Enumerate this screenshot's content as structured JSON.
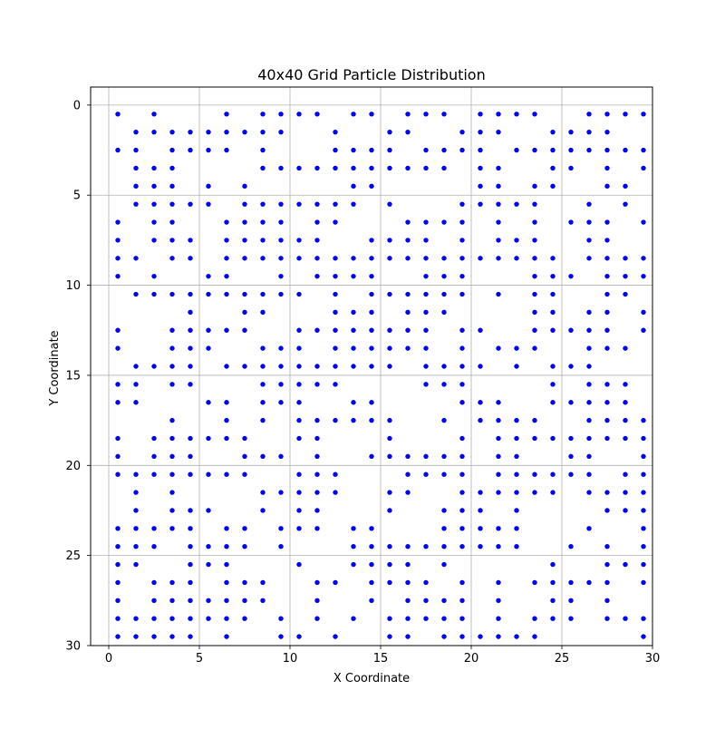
{
  "chart_data": {
    "type": "scatter",
    "title": "40x40 Grid Particle Distribution",
    "xlabel": "X Coordinate",
    "ylabel": "Y Coordinate",
    "xlim": [
      -1.0,
      30.0
    ],
    "ylim": [
      30.0,
      -1.0
    ],
    "y_inverted": true,
    "grid": true,
    "marker_color": "#0000ff",
    "xticks": [
      0,
      5,
      10,
      15,
      20,
      25,
      30
    ],
    "xtick_labels": [
      "0",
      "5",
      "10",
      "15",
      "20",
      "25",
      "30"
    ],
    "yticks": [
      0,
      5,
      10,
      15,
      20,
      25,
      30
    ],
    "ytick_labels": [
      "0",
      "5",
      "10",
      "15",
      "20",
      "25",
      "30"
    ],
    "rows": [
      {
        "y": 0.5,
        "x": [
          0.5,
          2.5,
          6.5,
          8.5,
          9.5,
          10.5,
          11.5,
          13.5,
          14.5,
          16.5,
          17.5,
          18.5,
          20.5,
          21.5,
          22.5,
          23.5,
          26.5,
          27.5,
          28.5,
          29.5
        ]
      },
      {
        "y": 1.5,
        "x": [
          1.5,
          2.5,
          3.5,
          4.5,
          5.5,
          6.5,
          7.5,
          8.5,
          9.5,
          12.5,
          15.5,
          16.5,
          19.5,
          20.5,
          21.5,
          24.5,
          25.5,
          26.5,
          27.5
        ]
      },
      {
        "y": 2.5,
        "x": [
          0.5,
          1.5,
          3.5,
          4.5,
          5.5,
          6.5,
          8.5,
          12.5,
          13.5,
          14.5,
          15.5,
          17.5,
          18.5,
          19.5,
          20.5,
          22.5,
          23.5,
          24.5,
          25.5,
          26.5,
          27.5,
          28.5,
          29.5
        ]
      },
      {
        "y": 3.5,
        "x": [
          1.5,
          2.5,
          3.5,
          8.5,
          9.5,
          10.5,
          11.5,
          12.5,
          13.5,
          14.5,
          15.5,
          16.5,
          17.5,
          18.5,
          20.5,
          21.5,
          24.5,
          25.5,
          27.5,
          29.5
        ]
      },
      {
        "y": 4.5,
        "x": [
          1.5,
          2.5,
          3.5,
          5.5,
          7.5,
          13.5,
          14.5,
          20.5,
          21.5,
          23.5,
          24.5,
          27.5,
          28.5
        ]
      },
      {
        "y": 5.5,
        "x": [
          1.5,
          2.5,
          3.5,
          4.5,
          5.5,
          7.5,
          8.5,
          9.5,
          10.5,
          11.5,
          12.5,
          13.5,
          15.5,
          19.5,
          20.5,
          21.5,
          22.5,
          23.5,
          26.5,
          28.5
        ]
      },
      {
        "y": 6.5,
        "x": [
          0.5,
          2.5,
          3.5,
          6.5,
          7.5,
          8.5,
          9.5,
          11.5,
          12.5,
          16.5,
          17.5,
          18.5,
          19.5,
          21.5,
          23.5,
          25.5,
          26.5,
          27.5,
          29.5
        ]
      },
      {
        "y": 7.5,
        "x": [
          0.5,
          2.5,
          3.5,
          4.5,
          6.5,
          7.5,
          8.5,
          9.5,
          10.5,
          11.5,
          14.5,
          15.5,
          16.5,
          17.5,
          19.5,
          21.5,
          22.5,
          23.5,
          26.5,
          27.5
        ]
      },
      {
        "y": 8.5,
        "x": [
          0.5,
          1.5,
          3.5,
          4.5,
          6.5,
          7.5,
          8.5,
          9.5,
          10.5,
          11.5,
          12.5,
          13.5,
          14.5,
          15.5,
          16.5,
          17.5,
          18.5,
          19.5,
          20.5,
          21.5,
          22.5,
          23.5,
          24.5,
          26.5,
          27.5,
          28.5,
          29.5
        ]
      },
      {
        "y": 9.5,
        "x": [
          0.5,
          2.5,
          5.5,
          6.5,
          9.5,
          11.5,
          12.5,
          13.5,
          14.5,
          17.5,
          18.5,
          19.5,
          23.5,
          24.5,
          25.5,
          27.5,
          28.5,
          29.5
        ]
      },
      {
        "y": 10.5,
        "x": [
          1.5,
          2.5,
          3.5,
          4.5,
          5.5,
          6.5,
          7.5,
          8.5,
          9.5,
          10.5,
          12.5,
          14.5,
          15.5,
          16.5,
          17.5,
          18.5,
          19.5,
          21.5,
          23.5,
          24.5,
          27.5,
          28.5
        ]
      },
      {
        "y": 11.5,
        "x": [
          4.5,
          7.5,
          8.5,
          12.5,
          13.5,
          14.5,
          16.5,
          17.5,
          18.5,
          23.5,
          24.5,
          26.5,
          27.5,
          29.5
        ]
      },
      {
        "y": 12.5,
        "x": [
          0.5,
          3.5,
          4.5,
          5.5,
          6.5,
          7.5,
          10.5,
          11.5,
          12.5,
          13.5,
          14.5,
          15.5,
          16.5,
          17.5,
          19.5,
          20.5,
          23.5,
          24.5,
          25.5,
          26.5,
          27.5,
          29.5
        ]
      },
      {
        "y": 13.5,
        "x": [
          0.5,
          3.5,
          4.5,
          5.5,
          8.5,
          9.5,
          10.5,
          12.5,
          13.5,
          14.5,
          15.5,
          16.5,
          17.5,
          19.5,
          21.5,
          22.5,
          23.5,
          26.5,
          27.5,
          28.5
        ]
      },
      {
        "y": 14.5,
        "x": [
          1.5,
          2.5,
          3.5,
          4.5,
          6.5,
          7.5,
          8.5,
          9.5,
          10.5,
          11.5,
          12.5,
          13.5,
          14.5,
          15.5,
          17.5,
          18.5,
          19.5,
          20.5,
          22.5,
          24.5,
          25.5,
          26.5
        ]
      },
      {
        "y": 15.5,
        "x": [
          0.5,
          1.5,
          3.5,
          4.5,
          8.5,
          9.5,
          10.5,
          11.5,
          12.5,
          17.5,
          18.5,
          19.5,
          24.5,
          26.5,
          27.5,
          28.5
        ]
      },
      {
        "y": 16.5,
        "x": [
          0.5,
          1.5,
          5.5,
          6.5,
          8.5,
          9.5,
          10.5,
          13.5,
          14.5,
          19.5,
          20.5,
          21.5,
          24.5,
          25.5,
          26.5,
          27.5,
          28.5
        ]
      },
      {
        "y": 17.5,
        "x": [
          3.5,
          6.5,
          8.5,
          10.5,
          11.5,
          12.5,
          13.5,
          14.5,
          15.5,
          18.5,
          20.5,
          21.5,
          22.5,
          23.5,
          26.5,
          27.5,
          28.5,
          29.5
        ]
      },
      {
        "y": 18.5,
        "x": [
          0.5,
          2.5,
          3.5,
          4.5,
          5.5,
          6.5,
          7.5,
          10.5,
          11.5,
          15.5,
          19.5,
          21.5,
          22.5,
          23.5,
          24.5,
          25.5,
          26.5,
          27.5,
          28.5,
          29.5
        ]
      },
      {
        "y": 19.5,
        "x": [
          0.5,
          2.5,
          3.5,
          4.5,
          7.5,
          8.5,
          9.5,
          11.5,
          14.5,
          15.5,
          16.5,
          17.5,
          18.5,
          19.5,
          21.5,
          22.5,
          25.5,
          26.5,
          29.5
        ]
      },
      {
        "y": 20.5,
        "x": [
          0.5,
          1.5,
          2.5,
          3.5,
          4.5,
          5.5,
          6.5,
          7.5,
          10.5,
          11.5,
          12.5,
          16.5,
          17.5,
          18.5,
          19.5,
          21.5,
          22.5,
          23.5,
          24.5,
          25.5,
          26.5,
          28.5,
          29.5
        ]
      },
      {
        "y": 21.5,
        "x": [
          1.5,
          3.5,
          8.5,
          9.5,
          10.5,
          11.5,
          12.5,
          15.5,
          16.5,
          19.5,
          20.5,
          21.5,
          22.5,
          23.5,
          24.5,
          26.5,
          27.5,
          28.5,
          29.5
        ]
      },
      {
        "y": 22.5,
        "x": [
          1.5,
          3.5,
          4.5,
          5.5,
          8.5,
          10.5,
          11.5,
          15.5,
          18.5,
          19.5,
          20.5,
          22.5,
          27.5,
          28.5,
          29.5
        ]
      },
      {
        "y": 23.5,
        "x": [
          0.5,
          1.5,
          2.5,
          3.5,
          4.5,
          6.5,
          7.5,
          9.5,
          10.5,
          11.5,
          13.5,
          14.5,
          18.5,
          19.5,
          20.5,
          21.5,
          22.5,
          26.5,
          29.5
        ]
      },
      {
        "y": 24.5,
        "x": [
          0.5,
          1.5,
          2.5,
          4.5,
          5.5,
          6.5,
          7.5,
          9.5,
          13.5,
          14.5,
          15.5,
          16.5,
          17.5,
          18.5,
          19.5,
          20.5,
          21.5,
          22.5,
          25.5,
          27.5,
          29.5
        ]
      },
      {
        "y": 25.5,
        "x": [
          0.5,
          1.5,
          4.5,
          5.5,
          6.5,
          10.5,
          13.5,
          14.5,
          15.5,
          16.5,
          18.5,
          24.5,
          27.5,
          28.5,
          29.5
        ]
      },
      {
        "y": 26.5,
        "x": [
          0.5,
          2.5,
          3.5,
          4.5,
          6.5,
          7.5,
          8.5,
          11.5,
          12.5,
          14.5,
          15.5,
          16.5,
          17.5,
          19.5,
          21.5,
          23.5,
          24.5,
          25.5,
          26.5,
          27.5,
          29.5
        ]
      },
      {
        "y": 27.5,
        "x": [
          0.5,
          2.5,
          3.5,
          4.5,
          5.5,
          6.5,
          7.5,
          8.5,
          11.5,
          14.5,
          16.5,
          17.5,
          18.5,
          19.5,
          21.5,
          24.5,
          25.5,
          27.5
        ]
      },
      {
        "y": 28.5,
        "x": [
          0.5,
          1.5,
          2.5,
          3.5,
          4.5,
          5.5,
          6.5,
          7.5,
          9.5,
          11.5,
          13.5,
          15.5,
          16.5,
          17.5,
          18.5,
          19.5,
          21.5,
          23.5,
          24.5,
          25.5,
          27.5,
          28.5,
          29.5
        ]
      },
      {
        "y": 29.5,
        "x": [
          0.5,
          1.5,
          2.5,
          3.5,
          4.5,
          6.5,
          9.5,
          10.5,
          12.5,
          15.5,
          16.5,
          18.5,
          19.5,
          20.5,
          21.5,
          22.5,
          23.5,
          29.5
        ]
      }
    ]
  }
}
